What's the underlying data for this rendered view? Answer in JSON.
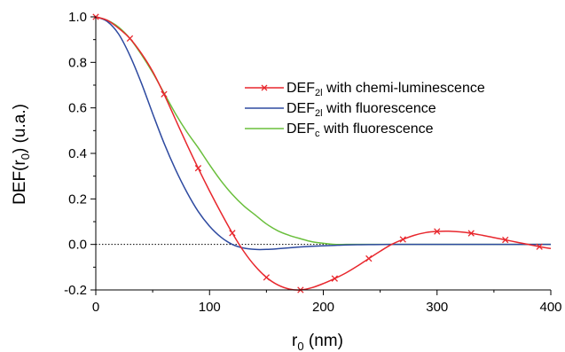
{
  "chart_data": {
    "type": "line",
    "title": "",
    "xlabel": {
      "base": "r",
      "sub": "0",
      "rest": " (nm)"
    },
    "ylabel": {
      "pre": "DEF(r",
      "sub": "0",
      "rest": ") (u.a.)"
    },
    "xlim": [
      0,
      400
    ],
    "ylim": [
      -0.2,
      1.0
    ],
    "x_ticks": [
      0,
      100,
      200,
      300,
      400
    ],
    "x_tick_labels": [
      "0",
      "100",
      "200",
      "300",
      "400"
    ],
    "y_ticks": [
      -0.2,
      0.0,
      0.2,
      0.4,
      0.6,
      0.8,
      1.0
    ],
    "y_tick_labels": [
      "-0.2",
      "0.0",
      "0.2",
      "0.4",
      "0.6",
      "0.8",
      "1.0"
    ],
    "grid": false,
    "zero_line": {
      "y": 0,
      "style": "dotted"
    },
    "legend_position": "upper-right",
    "series": [
      {
        "name": {
          "main": "DEF",
          "sub": "2l",
          "rest": " with chemi-luminescence"
        },
        "color": "#e8272d",
        "marker": "x",
        "marker_x": [
          0,
          30,
          60,
          90,
          120,
          150,
          180,
          210,
          240,
          270,
          300,
          330,
          360,
          390
        ],
        "x": [
          0,
          10,
          20,
          30,
          40,
          50,
          60,
          70,
          80,
          90,
          100,
          110,
          120,
          130,
          140,
          150,
          160,
          170,
          180,
          190,
          200,
          210,
          220,
          230,
          240,
          250,
          260,
          270,
          280,
          290,
          300,
          310,
          320,
          330,
          340,
          350,
          360,
          370,
          380,
          390,
          400
        ],
        "y": [
          1.0,
          0.985,
          0.95,
          0.905,
          0.84,
          0.76,
          0.66,
          0.55,
          0.44,
          0.335,
          0.235,
          0.14,
          0.05,
          -0.03,
          -0.095,
          -0.145,
          -0.178,
          -0.196,
          -0.2,
          -0.19,
          -0.172,
          -0.15,
          -0.125,
          -0.095,
          -0.062,
          -0.03,
          0.0,
          0.022,
          0.04,
          0.052,
          0.057,
          0.058,
          0.055,
          0.049,
          0.04,
          0.03,
          0.02,
          0.01,
          0.0,
          -0.01,
          -0.018
        ]
      },
      {
        "name": {
          "main": "DEF",
          "sub": "2l",
          "rest": " with fluorescence"
        },
        "color": "#2e4aa0",
        "marker": "none",
        "x": [
          0,
          10,
          20,
          30,
          40,
          50,
          60,
          70,
          80,
          90,
          100,
          110,
          120,
          130,
          140,
          150,
          160,
          170,
          180,
          190,
          200,
          210,
          220,
          230,
          240,
          260,
          300,
          340,
          380,
          400
        ],
        "y": [
          1.0,
          0.98,
          0.925,
          0.83,
          0.71,
          0.575,
          0.445,
          0.33,
          0.23,
          0.145,
          0.08,
          0.032,
          0.0,
          -0.016,
          -0.022,
          -0.022,
          -0.019,
          -0.015,
          -0.011,
          -0.008,
          -0.006,
          -0.004,
          -0.0025,
          -0.0015,
          -0.001,
          0.0,
          0.0,
          0.0,
          0.0,
          0.0
        ]
      },
      {
        "name": {
          "main": "DEF",
          "sub": "c",
          "rest": " with fluorescence"
        },
        "color": "#6abf3c",
        "marker": "none",
        "x": [
          0,
          10,
          20,
          30,
          40,
          50,
          60,
          70,
          80,
          90,
          100,
          110,
          120,
          130,
          140,
          150,
          160,
          170,
          180,
          190,
          200,
          210,
          220,
          230,
          240,
          260,
          300,
          340,
          380,
          400
        ],
        "y": [
          1.0,
          0.985,
          0.955,
          0.905,
          0.835,
          0.755,
          0.665,
          0.575,
          0.495,
          0.425,
          0.35,
          0.28,
          0.22,
          0.17,
          0.13,
          0.09,
          0.06,
          0.04,
          0.025,
          0.012,
          0.005,
          0.0,
          0.0,
          0.0,
          0.0,
          0.0,
          0.0,
          0.0,
          0.0,
          0.0
        ]
      }
    ]
  }
}
